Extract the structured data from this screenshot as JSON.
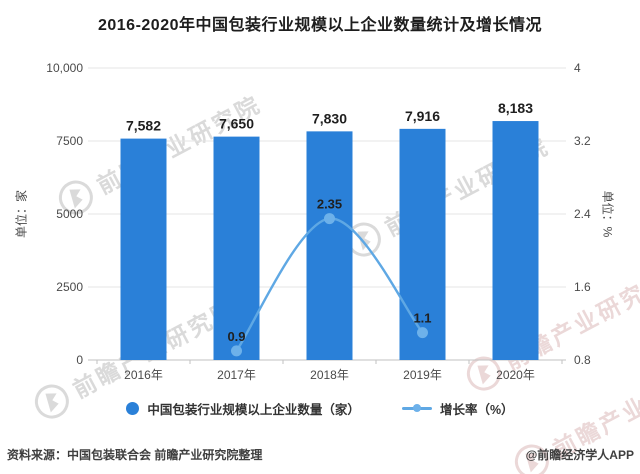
{
  "title": "2016-2020年中国包装行业规模以上企业数量统计及增长情况",
  "chart_data": {
    "type": "bar",
    "categories": [
      "2016年",
      "2017年",
      "2018年",
      "2019年",
      "2020年"
    ],
    "series": [
      {
        "name": "中国包装行业规模以上企业数量（家）",
        "type": "bar",
        "values": [
          7582,
          7650,
          7830,
          7916,
          8183
        ],
        "labels": [
          "7,582",
          "7,650",
          "7,830",
          "7,916",
          "8,183"
        ],
        "color": "#2a80d8",
        "axis": "left"
      },
      {
        "name": "增长率（%）",
        "type": "line",
        "values": [
          null,
          0.9,
          2.35,
          1.1,
          null
        ],
        "labels": [
          "",
          "0.9",
          "2.35",
          "1.1",
          ""
        ],
        "color": "#5fa8e4",
        "marker_color": "#6db1ea",
        "axis": "right"
      }
    ],
    "left_axis": {
      "label": "单位：家",
      "min": 0,
      "max": 10000,
      "ticks": [
        "0",
        "2500",
        "5000",
        "7500",
        "10,000"
      ]
    },
    "right_axis": {
      "label": "单位：%",
      "min": 0.8,
      "max": 4,
      "ticks": [
        "0.8",
        "1.6",
        "2.4",
        "3.2",
        "4"
      ]
    },
    "grid": true,
    "legend_position": "bottom",
    "grid_color": "#e4e4e4",
    "axis_line_color": "#c2c2c2",
    "tick_text_color": "#4a4a4a",
    "value_label_color": "#1f1f1f"
  },
  "footer": {
    "source": "资料来源：中国包装联合会 前瞻产业研究院整理",
    "brand": "@前瞻经济学人APP"
  },
  "watermark": {
    "text": "前瞻产业研究院"
  }
}
